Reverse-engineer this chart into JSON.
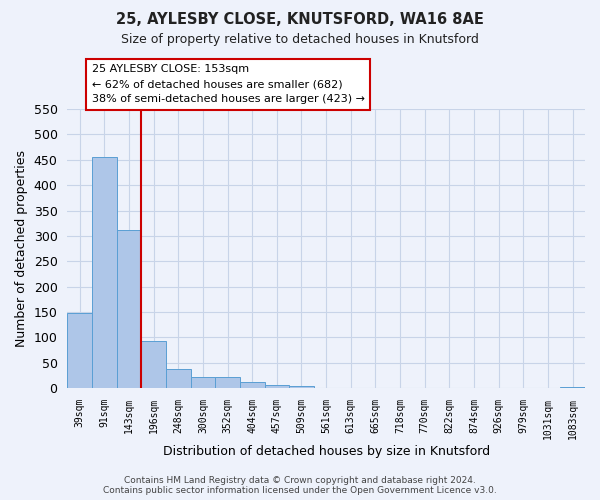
{
  "title1": "25, AYLESBY CLOSE, KNUTSFORD, WA16 8AE",
  "title2": "Size of property relative to detached houses in Knutsford",
  "xlabel": "Distribution of detached houses by size in Knutsford",
  "ylabel": "Number of detached properties",
  "bin_labels": [
    "39sqm",
    "91sqm",
    "143sqm",
    "196sqm",
    "248sqm",
    "300sqm",
    "352sqm",
    "404sqm",
    "457sqm",
    "509sqm",
    "561sqm",
    "613sqm",
    "665sqm",
    "718sqm",
    "770sqm",
    "822sqm",
    "874sqm",
    "926sqm",
    "979sqm",
    "1031sqm",
    "1083sqm"
  ],
  "bar_values": [
    148,
    455,
    312,
    93,
    37,
    21,
    22,
    12,
    6,
    5,
    1,
    0,
    0,
    0,
    0,
    0,
    0,
    0,
    0,
    0,
    3
  ],
  "bar_color": "#aec6e8",
  "bar_edge_color": "#5a9fd4",
  "vline_color": "#cc0000",
  "ylim": [
    0,
    550
  ],
  "yticks": [
    0,
    50,
    100,
    150,
    200,
    250,
    300,
    350,
    400,
    450,
    500,
    550
  ],
  "annotation_title": "25 AYLESBY CLOSE: 153sqm",
  "annotation_line1": "← 62% of detached houses are smaller (682)",
  "annotation_line2": "38% of semi-detached houses are larger (423) →",
  "annotation_box_color": "#ffffff",
  "annotation_box_edge": "#cc0000",
  "bg_color": "#eef2fb",
  "grid_color": "#c8d4e8",
  "footer1": "Contains HM Land Registry data © Crown copyright and database right 2024.",
  "footer2": "Contains public sector information licensed under the Open Government Licence v3.0."
}
